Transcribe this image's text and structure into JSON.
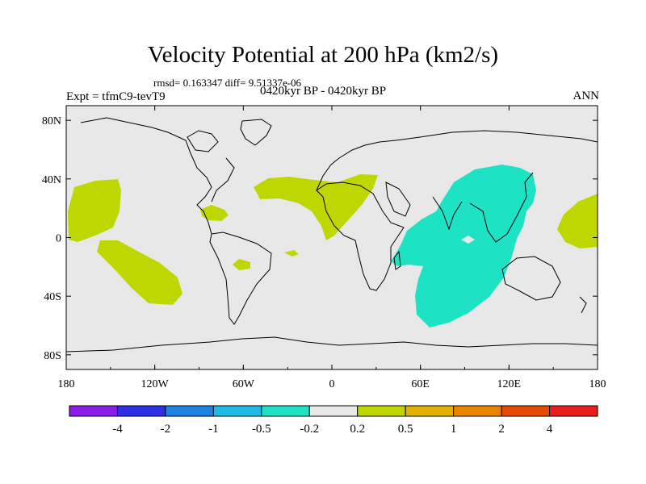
{
  "title": "Velocity Potential at 200 hPa (km2/s)",
  "stats": "rmsd= 0.163347 diff= 9.51337e-06",
  "left_label": "Expt = tfmC9-tevT9",
  "center_label": "0420kyr BP - 0420kyr BP",
  "right_label": "ANN",
  "colors": {
    "background_field": "#e8e8e8",
    "positive_fill": "#bfd700",
    "negative_fill": "#1ee2c4",
    "coast": "#000000"
  },
  "chart_data": {
    "type": "filled-contour-map",
    "field": "Velocity Potential at 200 hPa difference",
    "units": "km2/s",
    "lon_range": [
      -180,
      180
    ],
    "lat_range": [
      -90,
      90
    ],
    "x_ticks": [
      "180",
      "120W",
      "60W",
      "0",
      "60E",
      "120E",
      "180"
    ],
    "y_ticks": [
      "80N",
      "40N",
      "0",
      "40S",
      "80S"
    ],
    "colorbar": {
      "levels": [
        "-4",
        "-2",
        "-1",
        "-0.5",
        "-0.2",
        "0.2",
        "0.5",
        "1",
        "2",
        "4"
      ],
      "colors": [
        "#8a1ee8",
        "#2e2ee6",
        "#1e82e0",
        "#1ebae6",
        "#1ee2c4",
        "#e8e8e8",
        "#bfd700",
        "#e3b200",
        "#e88400",
        "#e64a00",
        "#e61e1e"
      ]
    },
    "regions": [
      {
        "name": "east-pacific-north-positive",
        "sign": "positive",
        "level": "0.2 to 0.5"
      },
      {
        "name": "east-pacific-south-positive",
        "sign": "positive",
        "level": "0.2 to 0.5"
      },
      {
        "name": "caribbean-positive",
        "sign": "positive",
        "level": "0.2 to 0.5"
      },
      {
        "name": "north-africa-atlantic-positive",
        "sign": "positive",
        "level": "0.2 to 0.5"
      },
      {
        "name": "south-america-positive",
        "sign": "positive",
        "level": "0.2 to 0.5"
      },
      {
        "name": "south-atlantic-positive",
        "sign": "positive",
        "level": "0.2 to 0.5"
      },
      {
        "name": "west-pacific-positive",
        "sign": "positive",
        "level": "0.2 to 0.5"
      },
      {
        "name": "indian-ocean-asia-negative",
        "sign": "negative",
        "level": "-0.5 to -0.2"
      }
    ]
  }
}
